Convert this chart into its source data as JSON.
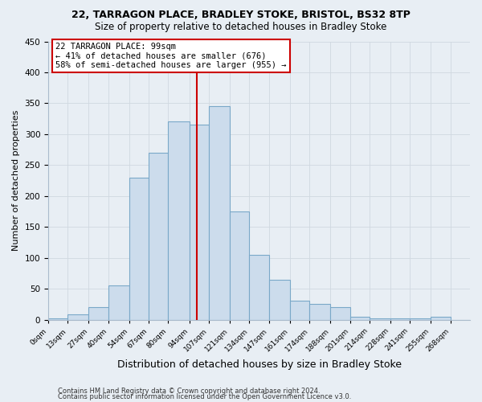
{
  "title1": "22, TARRAGON PLACE, BRADLEY STOKE, BRISTOL, BS32 8TP",
  "title2": "Size of property relative to detached houses in Bradley Stoke",
  "xlabel": "Distribution of detached houses by size in Bradley Stoke",
  "ylabel": "Number of detached properties",
  "footer1": "Contains HM Land Registry data © Crown copyright and database right 2024.",
  "footer2": "Contains public sector information licensed under the Open Government Licence v3.0.",
  "bin_labels": [
    "0sqm",
    "13sqm",
    "27sqm",
    "40sqm",
    "54sqm",
    "67sqm",
    "80sqm",
    "94sqm",
    "107sqm",
    "121sqm",
    "134sqm",
    "147sqm",
    "161sqm",
    "174sqm",
    "188sqm",
    "201sqm",
    "214sqm",
    "228sqm",
    "241sqm",
    "255sqm",
    "268sqm"
  ],
  "bar_heights": [
    2,
    8,
    20,
    55,
    230,
    270,
    320,
    315,
    345,
    175,
    105,
    65,
    30,
    25,
    20,
    5,
    2,
    2,
    2,
    5,
    0
  ],
  "bin_edges": [
    0,
    13,
    27,
    40,
    54,
    67,
    80,
    94,
    107,
    121,
    134,
    147,
    161,
    174,
    188,
    201,
    214,
    228,
    241,
    255,
    268,
    281
  ],
  "bar_color": "#ccdcec",
  "bar_edge_color": "#7aa8c8",
  "vline_x": 99,
  "vline_color": "#cc0000",
  "annotation_text": "22 TARRAGON PLACE: 99sqm\n← 41% of detached houses are smaller (676)\n58% of semi-detached houses are larger (955) →",
  "annotation_box_color": "white",
  "annotation_box_edge": "#cc0000",
  "ylim": [
    0,
    450
  ],
  "yticks": [
    0,
    50,
    100,
    150,
    200,
    250,
    300,
    350,
    400,
    450
  ],
  "grid_color": "#d0d8e0",
  "bg_color": "#e8eef4",
  "title1_fontsize": 9,
  "title2_fontsize": 8.5,
  "ylabel_fontsize": 8,
  "xlabel_fontsize": 9
}
